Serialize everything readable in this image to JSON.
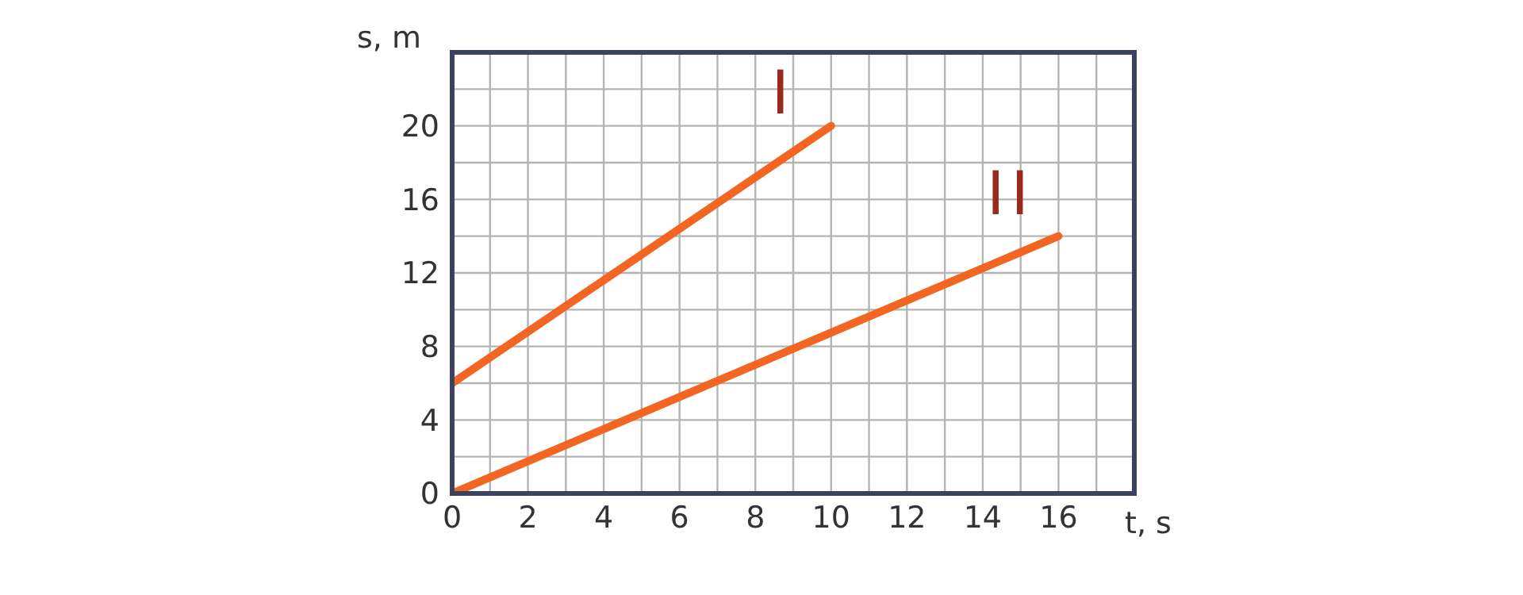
{
  "chart_data": {
    "type": "line",
    "xlabel": "t, s",
    "ylabel": "s, m",
    "xlim": [
      0,
      18
    ],
    "ylim": [
      0,
      24
    ],
    "xticks": [
      0,
      {
        "value": 1,
        "label": null
      },
      2,
      {
        "value": 3,
        "label": null
      },
      4,
      {
        "value": 5,
        "label": null
      },
      6,
      {
        "value": 7,
        "label": null
      },
      8,
      {
        "value": 9,
        "label": null
      },
      10,
      {
        "value": 11,
        "label": null
      },
      12,
      {
        "value": 13,
        "label": null
      },
      14,
      {
        "value": 15,
        "label": null
      },
      16,
      {
        "value": 17,
        "label": null
      },
      {
        "value": 18,
        "label": null
      }
    ],
    "yticks": [
      0,
      {
        "value": 2,
        "label": null
      },
      4,
      {
        "value": 6,
        "label": null
      },
      8,
      {
        "value": 10,
        "label": null
      },
      12,
      {
        "value": 14,
        "label": null
      },
      16,
      {
        "value": 18,
        "label": null
      },
      20,
      {
        "value": 22,
        "label": null
      },
      {
        "value": 24,
        "label": null
      }
    ],
    "grid": true,
    "marker": "none",
    "line_style": "solid",
    "legend": false,
    "series": [
      {
        "name": "I",
        "color": "#f26522",
        "x": [
          0,
          10
        ],
        "values": [
          6,
          20
        ]
      },
      {
        "name": "II",
        "color": "#f26522",
        "x": [
          0,
          16
        ],
        "values": [
          0,
          14
        ]
      }
    ]
  }
}
